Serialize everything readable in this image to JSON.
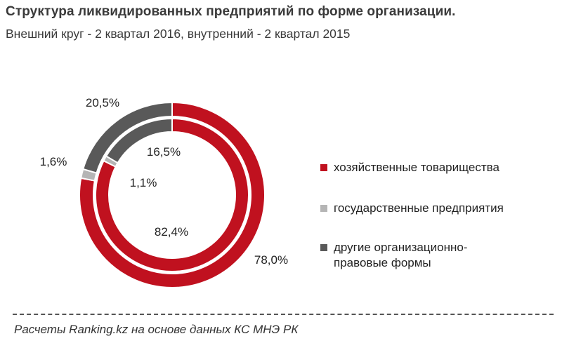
{
  "chart_data": {
    "type": "donut",
    "title": "Структура  ликвидированных  предприятий  по форме организации.",
    "subtitle": "Внешний  круг - 2 квартал 2016, внутренний  - 2 квартал 2015",
    "series": [
      {
        "name": "2 квартал 2016",
        "ring": "outer",
        "values": [
          78.0,
          1.6,
          20.5
        ],
        "labels": [
          "78,0%",
          "1,6%",
          "20,5%"
        ]
      },
      {
        "name": "2 квартал 2015",
        "ring": "inner",
        "values": [
          82.4,
          1.1,
          16.5
        ],
        "labels": [
          "82,4%",
          "1,1%",
          "16,5%"
        ]
      }
    ],
    "categories": [
      "хозяйственные товарищества",
      "государственные предприятия",
      "другие организационно-правовые формы"
    ],
    "colors": [
      "#c0111f",
      "#b5b5b5",
      "#595959"
    ],
    "legend_position": "right"
  },
  "legend": {
    "item_0_line1": "хозяйственные товарищества",
    "item_1_line1": "государственные предприятия",
    "item_2_line1": "другие организационно-",
    "item_2_line2": "правовые формы"
  },
  "source": "Расчеты Ranking.kz на основе данных КС МНЭ РК"
}
